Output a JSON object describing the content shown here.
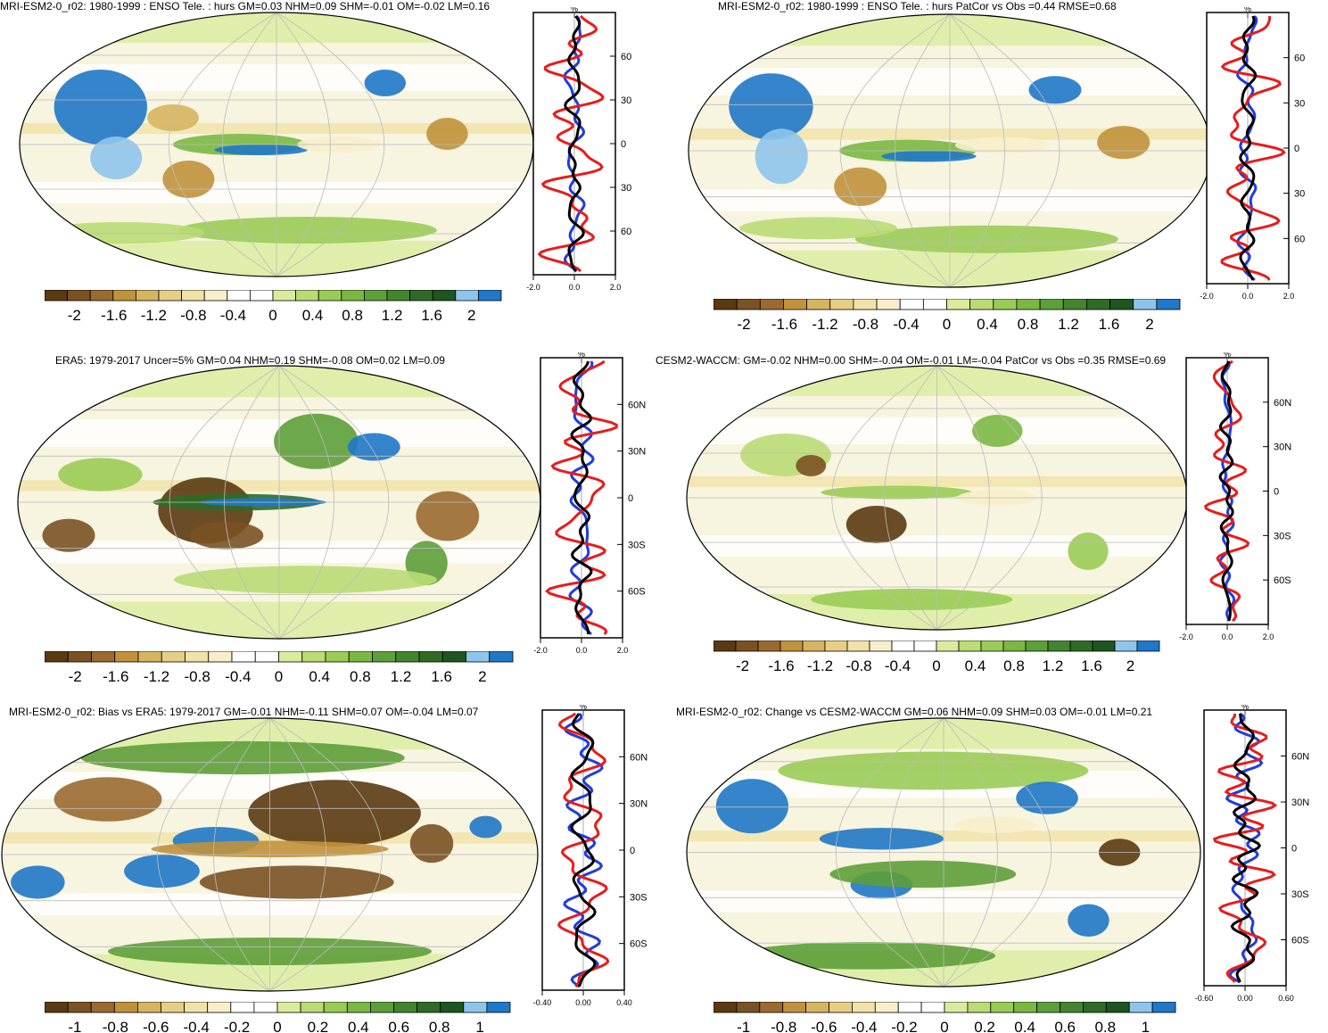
{
  "panels": [
    {
      "id": "p1",
      "title": "MRI-ESM2-0_r02: 1980-1999 : ENSO Tele. : hurs GM=0.03 NHM=0.09 SHM=-0.01 OM=-0.02 LM=0.16",
      "profile": {
        "unit": "%",
        "xticks": [
          "-2.0",
          "0.0",
          "2.0"
        ],
        "xrange": [
          -2,
          2
        ],
        "yticks": [
          "60N",
          "30N",
          "0",
          "30S",
          "60S"
        ]
      },
      "colorbar": {
        "labels": [
          "-2",
          "-1.6",
          "-1.2",
          "-0.8",
          "-0.4",
          "0",
          "0.4",
          "0.8",
          "1.2",
          "1.6",
          "2"
        ]
      }
    },
    {
      "id": "p2",
      "title": "MRI-ESM2-0_r02: 1980-1999 : ENSO Tele. : hurs PatCor vs Obs =0.44 RMSE=0.68",
      "profile": {
        "unit": "%",
        "xticks": [
          "-2.0",
          "0.0",
          "2.0"
        ],
        "xrange": [
          -2,
          2
        ],
        "yticks": [
          "60",
          "30",
          "0",
          "30",
          "60"
        ]
      },
      "colorbar": {
        "labels": [
          "-2",
          "-1.6",
          "-1.2",
          "-0.8",
          "-0.4",
          "0",
          "0.4",
          "0.8",
          "1.2",
          "1.6",
          "2"
        ]
      }
    },
    {
      "id": "p3",
      "title": "ERA5: 1979-2017 Uncer=5% GM=0.04 NHM=0.19 SHM=-0.08 OM=0.02 LM=0.09",
      "profile": {
        "unit": "%",
        "xticks": [
          "-2.0",
          "0.0",
          "2.0"
        ],
        "xrange": [
          -2,
          2
        ],
        "yticks": [
          "60N",
          "30N",
          "0",
          "30S",
          "60S"
        ]
      },
      "colorbar": {
        "labels": [
          "-2",
          "-1.6",
          "-1.2",
          "-0.8",
          "-0.4",
          "0",
          "0.4",
          "0.8",
          "1.2",
          "1.6",
          "2"
        ]
      }
    },
    {
      "id": "p4",
      "title": "CESM2-WACCM: GM=-0.02 NHM=0.00 SHM=-0.04 OM=-0.01 LM=-0.04 PatCor vs Obs =0.35 RMSE=0.69",
      "profile": {
        "unit": "%",
        "xticks": [
          "-2.0",
          "0.0",
          "2.0"
        ],
        "xrange": [
          -2,
          2
        ],
        "yticks": [
          "60N",
          "30N",
          "0",
          "30S",
          "60S"
        ]
      },
      "colorbar": {
        "labels": [
          "-2",
          "-1.6",
          "-1.2",
          "-0.8",
          "-0.4",
          "0",
          "0.4",
          "0.8",
          "1.2",
          "1.6",
          "2"
        ]
      }
    },
    {
      "id": "p5",
      "title": "MRI-ESM2-0_r02: Bias vs ERA5: 1979-2017 GM=-0.01 NHM=-0.11 SHM=0.07 OM=-0.04 LM=0.07",
      "profile": {
        "unit": "%",
        "xticks": [
          "-0.40",
          "0.00",
          "0.40"
        ],
        "xrange": [
          -0.4,
          0.4
        ],
        "yticks": [
          "60N",
          "30N",
          "0",
          "30S",
          "60S"
        ]
      },
      "colorbar": {
        "labels": [
          "-1",
          "-0.8",
          "-0.6",
          "-0.4",
          "-0.2",
          "0",
          "0.2",
          "0.4",
          "0.6",
          "0.8",
          "1"
        ]
      }
    },
    {
      "id": "p6",
      "title": "MRI-ESM2-0_r02: Change vs CESM2-WACCM GM=0.06 NHM=0.09 SHM=0.03 OM=-0.01 LM=0.21",
      "profile": {
        "unit": "%",
        "xticks": [
          "-0.60",
          "0.00",
          "0.60"
        ],
        "xrange": [
          -0.6,
          0.6
        ],
        "yticks": [
          "60N",
          "30N",
          "0",
          "30S",
          "60S"
        ]
      },
      "colorbar": {
        "labels": [
          "-1",
          "-0.8",
          "-0.6",
          "-0.4",
          "-0.2",
          "0",
          "0.2",
          "0.4",
          "0.6",
          "0.8",
          "1"
        ]
      }
    }
  ],
  "palette": [
    "#5a3a12",
    "#7a5223",
    "#9a6a30",
    "#c0923c",
    "#d6b560",
    "#e6cf85",
    "#f0e2a8",
    "#f7efcb",
    "#ffffff",
    "#ffffff",
    "#d9ec9e",
    "#b9dc74",
    "#9acc55",
    "#7ab842",
    "#5d9f38",
    "#43852e",
    "#2f6b26",
    "#1e5520",
    "#8ec5ec",
    "#1f78c8"
  ]
}
